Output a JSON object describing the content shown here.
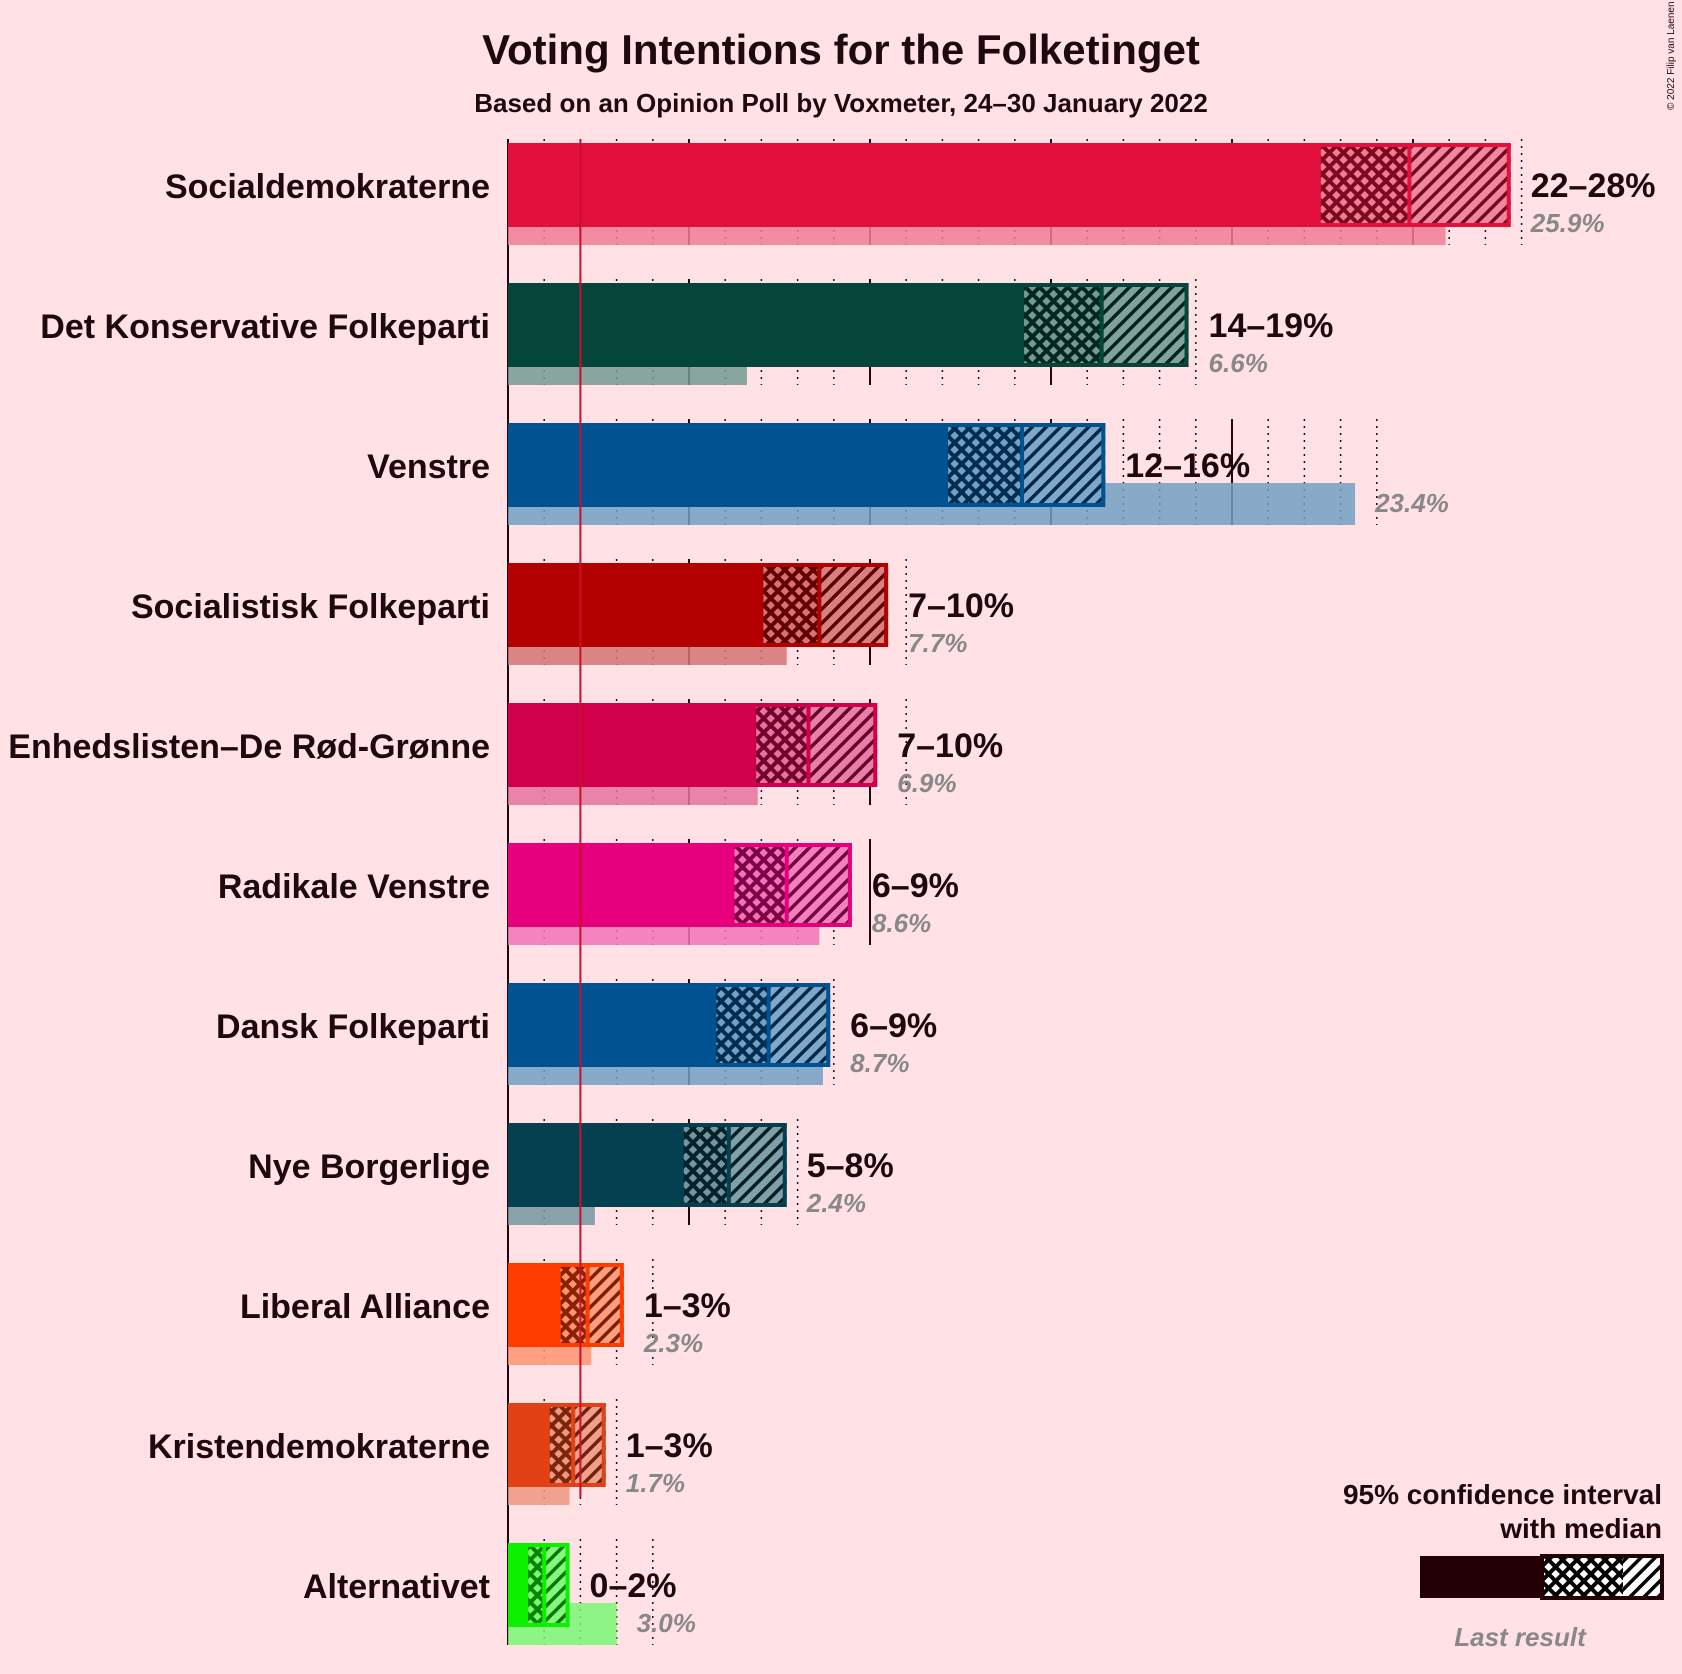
{
  "chart_data": {
    "type": "bar",
    "title": "Voting Intentions for the Folketinget",
    "subtitle": "Based on an Opinion Poll by Voxmeter, 24–30 January 2022",
    "copyright": "© 2022 Filip van Laenen",
    "threshold": 2,
    "series": [
      {
        "party": "Socialdemokraterne",
        "color": "#E3103D",
        "ci_low": 22.4,
        "median": 24.9,
        "ci_high": 27.7,
        "range_label": "22–28%",
        "last_result": 25.9,
        "last_label": "25.9%"
      },
      {
        "party": "Det Konservative Folkeparti",
        "color": "#04463A",
        "ci_low": 14.2,
        "median": 16.4,
        "ci_high": 18.8,
        "range_label": "14–19%",
        "last_result": 6.6,
        "last_label": "6.6%"
      },
      {
        "party": "Venstre",
        "color": "#005291",
        "ci_low": 12.1,
        "median": 14.2,
        "ci_high": 16.5,
        "range_label": "12–16%",
        "last_result": 23.4,
        "last_label": "23.4%"
      },
      {
        "party": "Socialistisk Folkeparti",
        "color": "#B30000",
        "ci_low": 7.0,
        "median": 8.6,
        "ci_high": 10.5,
        "range_label": "7–10%",
        "last_result": 7.7,
        "last_label": "7.7%"
      },
      {
        "party": "Enhedslisten–De Rød-Grønne",
        "color": "#D0004D",
        "ci_low": 6.8,
        "median": 8.3,
        "ci_high": 10.2,
        "range_label": "7–10%",
        "last_result": 6.9,
        "last_label": "6.9%"
      },
      {
        "party": "Radikale Venstre",
        "color": "#E6007E",
        "ci_low": 6.2,
        "median": 7.7,
        "ci_high": 9.5,
        "range_label": "6–9%",
        "last_result": 8.6,
        "last_label": "8.6%"
      },
      {
        "party": "Dansk Folkeparti",
        "color": "#005291",
        "ci_low": 5.7,
        "median": 7.2,
        "ci_high": 8.9,
        "range_label": "6–9%",
        "last_result": 8.7,
        "last_label": "8.7%"
      },
      {
        "party": "Nye Borgerlige",
        "color": "#034050",
        "ci_low": 4.8,
        "median": 6.1,
        "ci_high": 7.7,
        "range_label": "5–8%",
        "last_result": 2.4,
        "last_label": "2.4%"
      },
      {
        "party": "Liberal Alliance",
        "color": "#FF3C00",
        "ci_low": 1.4,
        "median": 2.2,
        "ci_high": 3.2,
        "range_label": "1–3%",
        "last_result": 2.3,
        "last_label": "2.3%"
      },
      {
        "party": "Kristendemokraterne",
        "color": "#E24115",
        "ci_low": 1.1,
        "median": 1.8,
        "ci_high": 2.7,
        "range_label": "1–3%",
        "last_result": 1.7,
        "last_label": "1.7%"
      },
      {
        "party": "Alternativet",
        "color": "#0CF000",
        "ci_low": 0.5,
        "median": 1.0,
        "ci_high": 1.7,
        "range_label": "0–2%",
        "last_result": 3.0,
        "last_label": "3.0%"
      }
    ],
    "legend": {
      "line1": "95% confidence interval",
      "line2": "with median",
      "last_result": "Last result",
      "position": "bottom-right"
    }
  }
}
